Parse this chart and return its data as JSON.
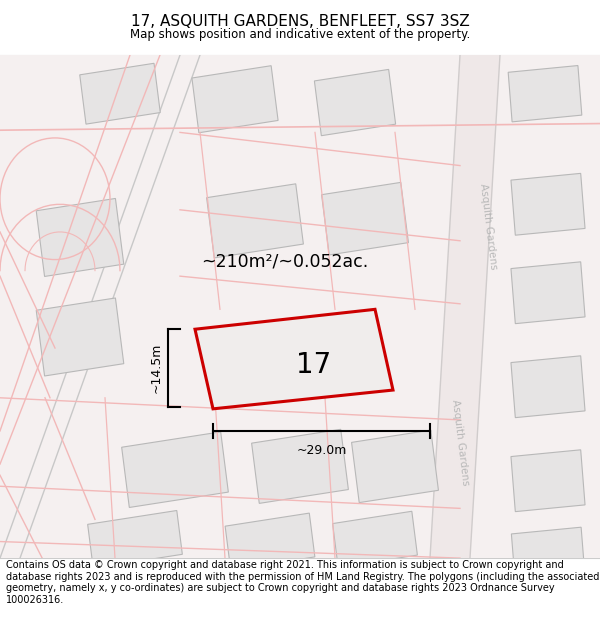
{
  "title": "17, ASQUITH GARDENS, BENFLEET, SS7 3SZ",
  "subtitle": "Map shows position and indicative extent of the property.",
  "area_label": "~210m²/~0.052ac.",
  "width_label": "~29.0m",
  "height_label": "~14.5m",
  "plot_number": "17",
  "footer_text": "Contains OS data © Crown copyright and database right 2021. This information is subject to Crown copyright and database rights 2023 and is reproduced with the permission of HM Land Registry. The polygons (including the associated geometry, namely x, y co-ordinates) are subject to Crown copyright and database rights 2023 Ordnance Survey 100026316.",
  "title_fontsize": 11,
  "subtitle_fontsize": 8.5,
  "footer_fontsize": 7.0,
  "map_bg": "#f5f0f0",
  "block_color": "#e6e4e4",
  "block_edge": "#b8b8b8",
  "road_pink": "#f2b8b8",
  "road_gray": "#c8c8c8",
  "plot_color": "#cc0000",
  "street_label_color": "#b8b8b8"
}
